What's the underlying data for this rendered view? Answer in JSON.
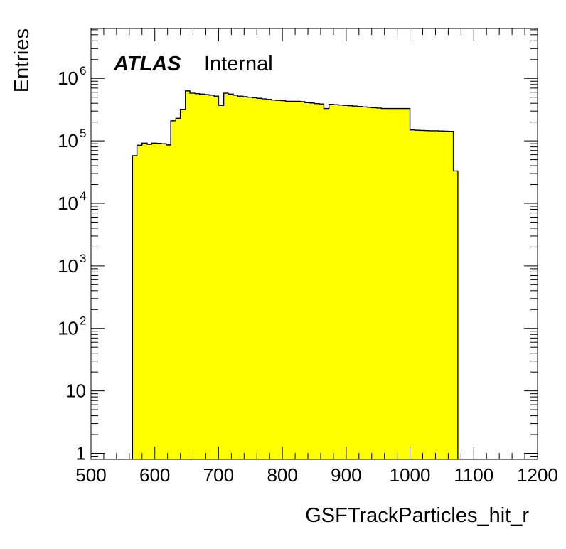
{
  "chart_data": {
    "type": "histogram",
    "title": "",
    "xlabel": "GSFTrackParticles_hit_r",
    "ylabel": "Entries",
    "atlas_label": "ATLAS",
    "atlas_sublabel": "Internal",
    "xlim": [
      500,
      1200
    ],
    "ylim": [
      0.8,
      6300000
    ],
    "yscale": "log",
    "grid": false,
    "fill_color": "#ffff00",
    "line_color": "#000000",
    "x_ticks": [
      {
        "value": 500,
        "label": "500"
      },
      {
        "value": 600,
        "label": "600"
      },
      {
        "value": 700,
        "label": "700"
      },
      {
        "value": 800,
        "label": "800"
      },
      {
        "value": 900,
        "label": "900"
      },
      {
        "value": 1000,
        "label": "1000"
      },
      {
        "value": 1100,
        "label": "1100"
      },
      {
        "value": 1200,
        "label": "1200"
      }
    ],
    "y_ticks": [
      {
        "value": 1,
        "base": "1",
        "exp": ""
      },
      {
        "value": 10,
        "base": "10",
        "exp": ""
      },
      {
        "value": 100,
        "base": "10",
        "exp": "2"
      },
      {
        "value": 1000,
        "base": "10",
        "exp": "3"
      },
      {
        "value": 10000,
        "base": "10",
        "exp": "4"
      },
      {
        "value": 100000,
        "base": "10",
        "exp": "5"
      },
      {
        "value": 1000000,
        "base": "10",
        "exp": "6"
      }
    ],
    "bins": {
      "edges": [
        565,
        572,
        580,
        588,
        595,
        603,
        610,
        618,
        625,
        633,
        640,
        648,
        655,
        663,
        670,
        678,
        685,
        693,
        700,
        708,
        715,
        723,
        730,
        738,
        745,
        753,
        760,
        768,
        775,
        783,
        790,
        798,
        805,
        813,
        820,
        828,
        835,
        843,
        850,
        858,
        865,
        873,
        880,
        888,
        895,
        903,
        910,
        918,
        925,
        933,
        940,
        948,
        955,
        963,
        970,
        978,
        985,
        993,
        1000,
        1008,
        1015,
        1023,
        1030,
        1038,
        1045,
        1053,
        1060,
        1068,
        1075
      ],
      "values": [
        58000,
        85000,
        92000,
        88000,
        92000,
        91000,
        90000,
        86000,
        210000,
        230000,
        320000,
        630000,
        580000,
        570000,
        560000,
        550000,
        540000,
        520000,
        370000,
        580000,
        560000,
        540000,
        520000,
        510000,
        500000,
        490000,
        480000,
        470000,
        460000,
        450000,
        445000,
        440000,
        430000,
        430000,
        430000,
        425000,
        410000,
        405000,
        395000,
        390000,
        330000,
        385000,
        380000,
        375000,
        370000,
        365000,
        360000,
        355000,
        350000,
        345000,
        340000,
        335000,
        330000,
        330000,
        330000,
        330000,
        330000,
        330000,
        150000,
        148000,
        147000,
        146000,
        145000,
        145000,
        144000,
        143000,
        142000,
        33000
      ]
    }
  }
}
